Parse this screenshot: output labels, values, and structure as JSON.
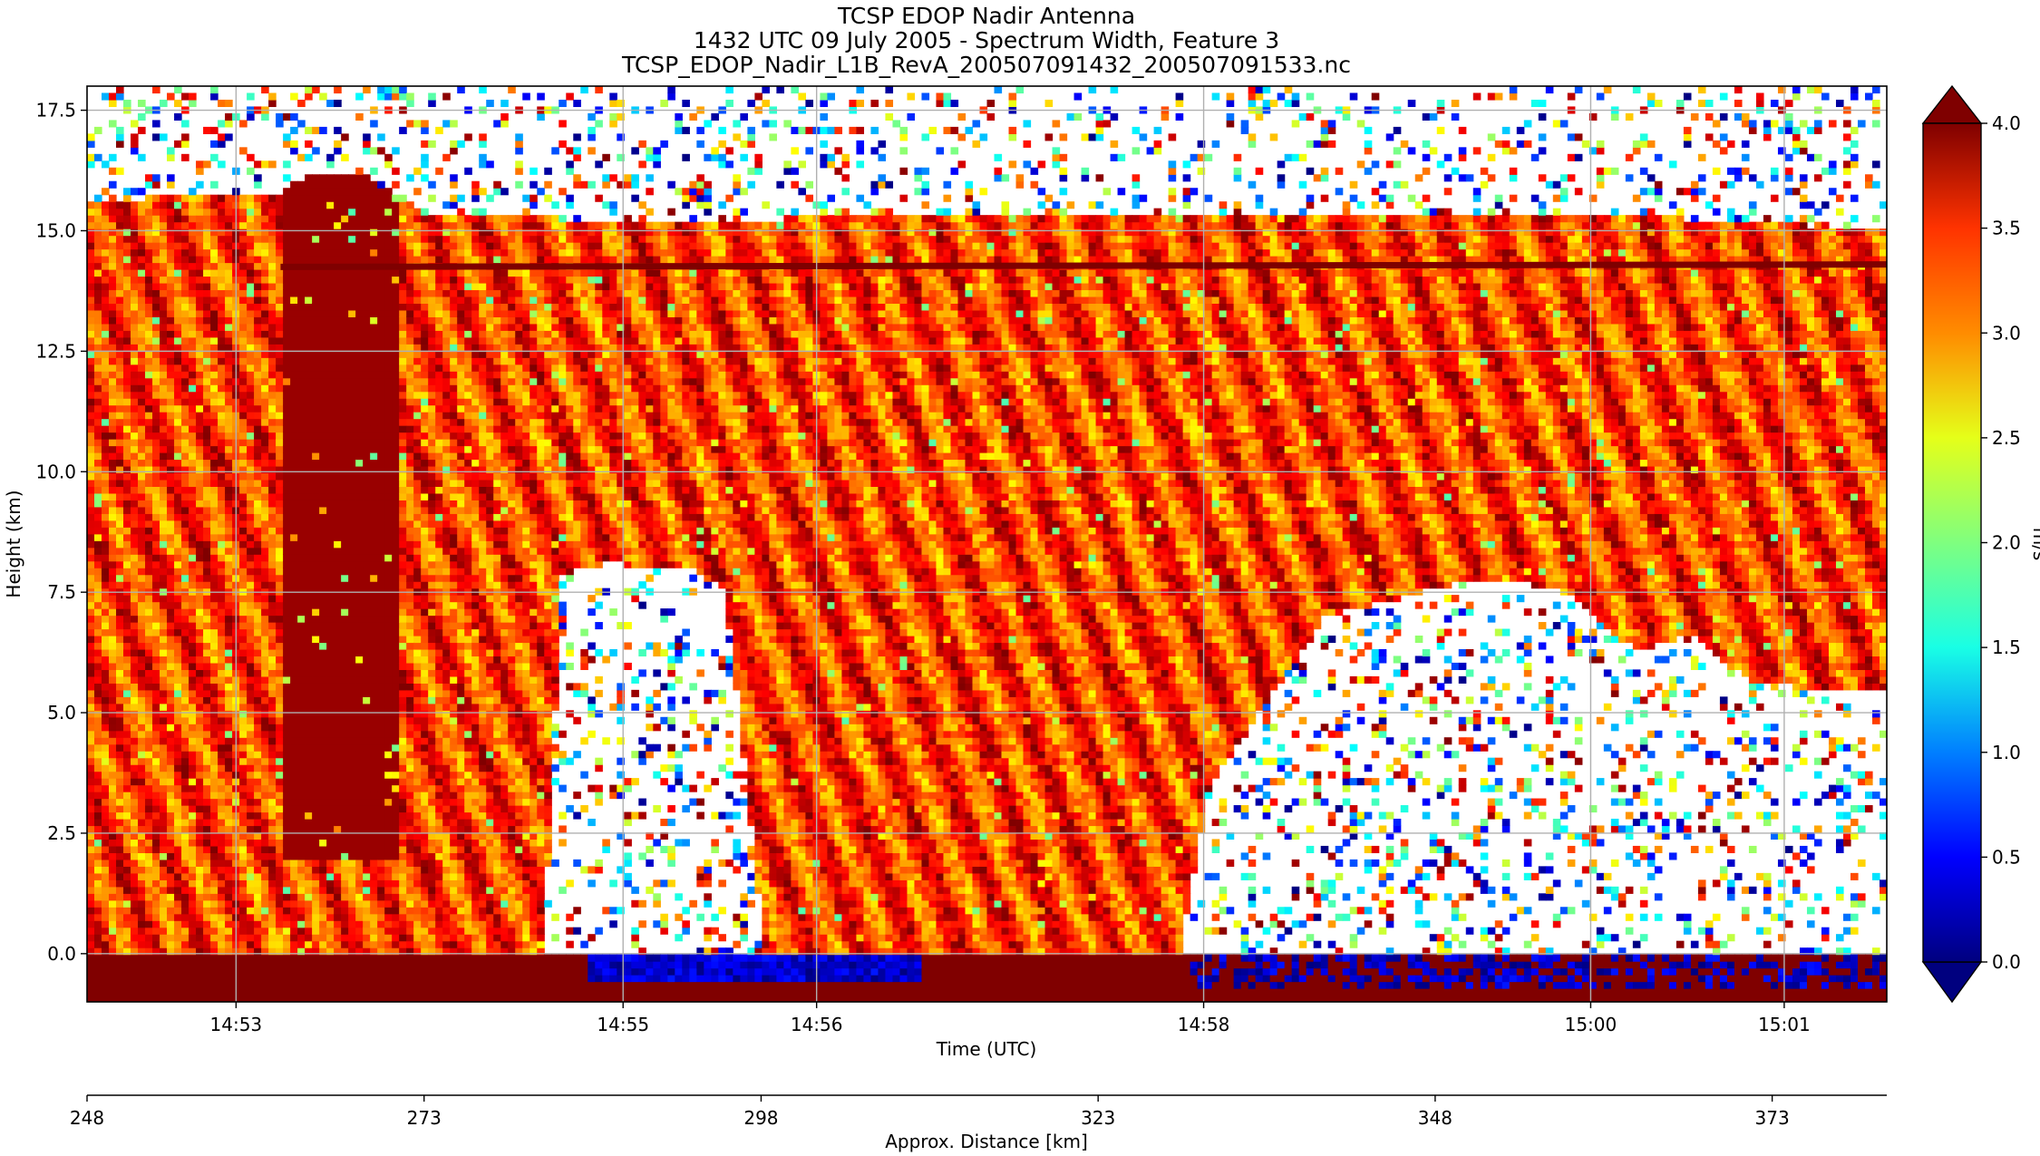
{
  "chart_data": {
    "type": "heatmap",
    "title_lines": [
      "TCSP EDOP Nadir Antenna",
      "1432 UTC 09 July 2005 - Spectrum Width, Feature 3",
      "TCSP_EDOP_Nadir_L1B_RevA_200507091432_200507091533.nc"
    ],
    "xlabel": "Time (UTC)",
    "ylabel": "Height (km)",
    "x2label": "Approx. Distance [km]",
    "colorbar_label": "m/s",
    "colormap": "jet",
    "colors": [
      "#00007f",
      "#0000ff",
      "#007fff",
      "#19ffe5",
      "#7fff7f",
      "#e5ff19",
      "#ff8c00",
      "#ff3300",
      "#7f0000"
    ],
    "grid": true,
    "xlim": [
      "14:52:14",
      "15:01:32"
    ],
    "ylim": [
      -1.0,
      18.0
    ],
    "x_ticks": [
      "14:53",
      "14:55",
      "14:56",
      "14:58",
      "15:00",
      "15:01"
    ],
    "x_tick_minutes": [
      0.77,
      2.77,
      3.77,
      5.77,
      7.77,
      8.77
    ],
    "y_ticks": [
      "0.0",
      "2.5",
      "5.0",
      "7.5",
      "10.0",
      "12.5",
      "15.0",
      "17.5"
    ],
    "y_tick_values": [
      0,
      2.5,
      5,
      7.5,
      10,
      12.5,
      15,
      17.5
    ],
    "x2_ticks": [
      "248",
      "273",
      "298",
      "323",
      "348",
      "373"
    ],
    "x2_tick_values": [
      248,
      273,
      298,
      323,
      348,
      373
    ],
    "x2_range": [
      248,
      381.5
    ],
    "colorbar_range": [
      0.0,
      4.0
    ],
    "colorbar_ticks": [
      "0.0",
      "0.5",
      "1.0",
      "1.5",
      "2.0",
      "2.5",
      "3.0",
      "3.5",
      "4.0"
    ],
    "colorbar_extend": "both",
    "features": {
      "aircraft_level_km": 14.3,
      "surface_km": 0.0,
      "cloud_top_max_km": 16.2,
      "typical_width_m_s": 3.3
    }
  }
}
